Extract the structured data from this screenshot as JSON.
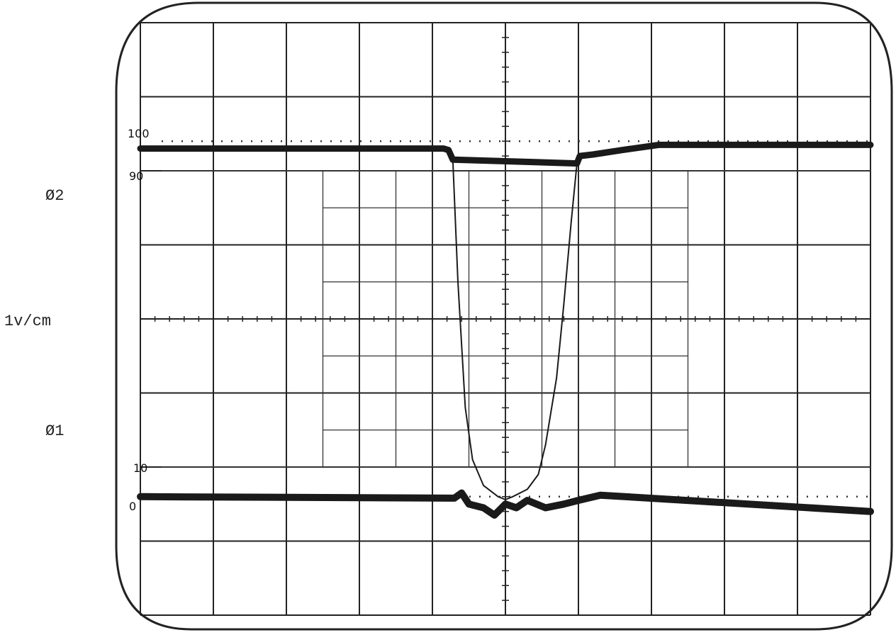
{
  "labels": {
    "phi2": "Ø2",
    "scale": "1v/cm",
    "phi1": "Ø1",
    "pct_100": "100",
    "pct_90": "90",
    "pct_10": "10",
    "pct_0": "0"
  },
  "chart_data": {
    "type": "line",
    "title": "",
    "xlabel": "",
    "ylabel": "1v/cm",
    "xlim": [
      -5,
      5
    ],
    "ylim": [
      -4,
      4
    ],
    "divisions": {
      "x": 10,
      "y": 8
    },
    "grid": true,
    "reference_levels": [
      {
        "label": "100",
        "y": 2.4
      },
      {
        "label": "90",
        "y": 2.0
      },
      {
        "label": "10",
        "y": -2.0
      },
      {
        "label": "0",
        "y": -2.4
      }
    ],
    "series": [
      {
        "name": "Ø2",
        "x": [
          -5.0,
          -0.85,
          -0.78,
          -0.72,
          0.98,
          1.02,
          1.2,
          1.6,
          2.1,
          5.0
        ],
        "y": [
          2.3,
          2.3,
          2.28,
          2.15,
          2.1,
          2.2,
          2.22,
          2.28,
          2.35,
          2.35
        ]
      },
      {
        "name": "Ø1",
        "x": [
          -5.0,
          -0.7,
          -0.6,
          -0.5,
          -0.3,
          -0.15,
          0,
          0.15,
          0.3,
          0.55,
          0.8,
          1.0,
          1.3,
          5.0
        ],
        "y": [
          -2.4,
          -2.42,
          -2.35,
          -2.5,
          -2.55,
          -2.65,
          -2.5,
          -2.55,
          -2.45,
          -2.55,
          -2.5,
          -2.45,
          -2.38,
          -2.6
        ]
      },
      {
        "name": "",
        "x": [
          -0.72,
          -0.65,
          -0.55,
          -0.45,
          -0.3,
          -0.1,
          0.0,
          0.1,
          0.3,
          0.45,
          0.55,
          0.7,
          0.8,
          0.9,
          0.98
        ],
        "y": [
          2.15,
          0.5,
          -1.2,
          -1.9,
          -2.25,
          -2.4,
          -2.44,
          -2.4,
          -2.3,
          -2.1,
          -1.7,
          -0.8,
          0.2,
          1.3,
          2.1
        ]
      }
    ]
  }
}
